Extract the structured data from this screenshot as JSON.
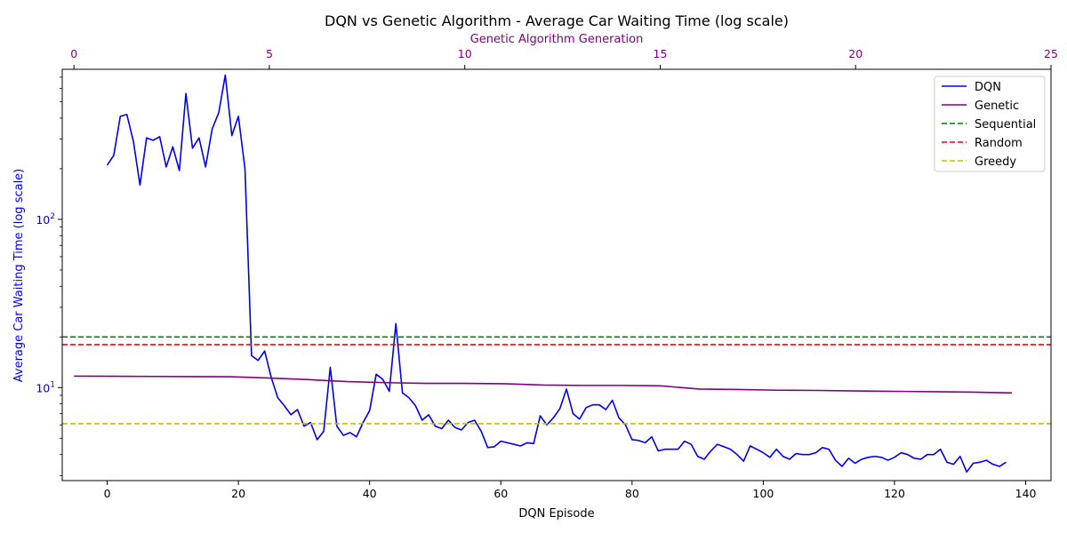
{
  "chart_data": {
    "type": "line",
    "title": "DQN vs Genetic Algorithm - Average Car Waiting Time (log scale)",
    "xlabel": "DQN Episode",
    "x2label": "Genetic Algorithm Generation",
    "ylabel": "Average Car Waiting Time (log scale)",
    "yscale": "log",
    "xlim": [
      -6.85,
      143.85
    ],
    "x2lim": [
      -0.3,
      25.0
    ],
    "ylim": [
      2.8,
      780
    ],
    "x_ticks": [
      0,
      20,
      40,
      60,
      80,
      100,
      120,
      140
    ],
    "x2_ticks": [
      0,
      5,
      10,
      15,
      20,
      25
    ],
    "y_ticks": [
      {
        "value": 10,
        "base": "10",
        "exp": "1"
      },
      {
        "value": 100,
        "base": "10",
        "exp": "2"
      }
    ],
    "legend_position": "top-right",
    "grid": false,
    "colors": {
      "dqn": "#0000ee",
      "genetic": "#800080",
      "sequential": "#008000",
      "random": "#ff0000",
      "greedy": "#bfbf00",
      "secondary_axis": "#800080",
      "primary_y_axis": "#0000ee"
    },
    "series": [
      {
        "name": "DQN",
        "axis": "primary",
        "x_start": 0,
        "values": [
          210,
          240,
          410,
          420,
          290,
          160,
          305,
          295,
          310,
          205,
          270,
          195,
          560,
          265,
          305,
          205,
          345,
          430,
          720,
          315,
          410,
          200,
          15.5,
          14.5,
          16.5,
          11.5,
          8.7,
          7.8,
          6.9,
          7.4,
          5.9,
          6.2,
          4.9,
          5.5,
          13.2,
          5.9,
          5.2,
          5.4,
          5.1,
          6.2,
          7.3,
          12.0,
          11.2,
          9.5,
          24.0,
          9.3,
          8.7,
          7.8,
          6.4,
          6.9,
          5.9,
          5.7,
          6.4,
          5.8,
          5.6,
          6.2,
          6.4,
          5.5,
          4.4,
          4.45,
          4.8,
          4.7,
          4.6,
          4.5,
          4.7,
          4.65,
          6.8,
          6.0,
          6.6,
          7.5,
          9.8,
          7.0,
          6.5,
          7.6,
          7.9,
          7.9,
          7.4,
          8.4,
          6.6,
          6.0,
          4.9,
          4.85,
          4.7,
          5.1,
          4.2,
          4.3,
          4.3,
          4.3,
          4.8,
          4.6,
          3.9,
          3.75,
          4.2,
          4.6,
          4.45,
          4.3,
          4.0,
          3.65,
          4.5,
          4.3,
          4.1,
          3.85,
          4.3,
          3.9,
          3.75,
          4.05,
          4.0,
          4.0,
          4.1,
          4.4,
          4.3,
          3.7,
          3.4,
          3.8,
          3.55,
          3.75,
          3.85,
          3.9,
          3.85,
          3.7,
          3.85,
          4.1,
          4.0,
          3.8,
          3.75,
          4.0,
          4.0,
          4.3,
          3.6,
          3.5,
          3.9,
          3.15,
          3.55,
          3.6,
          3.7,
          3.5,
          3.4,
          3.6
        ]
      },
      {
        "name": "Genetic",
        "axis": "secondary",
        "x": [
          0,
          1,
          2,
          3,
          4,
          5,
          6,
          7,
          8,
          9,
          10,
          11,
          12,
          13,
          14,
          15,
          16,
          17,
          18,
          19,
          20,
          21,
          22,
          23,
          24
        ],
        "values": [
          11.7,
          11.68,
          11.65,
          11.62,
          11.6,
          11.4,
          11.15,
          10.85,
          10.7,
          10.6,
          10.6,
          10.55,
          10.35,
          10.3,
          10.3,
          10.25,
          9.8,
          9.75,
          9.65,
          9.62,
          9.55,
          9.5,
          9.45,
          9.4,
          9.3
        ]
      },
      {
        "name": "Sequential",
        "axis": "primary",
        "constant": 20.0,
        "style": "dashed"
      },
      {
        "name": "Random",
        "axis": "primary",
        "constant": 18.0,
        "style": "dashed"
      },
      {
        "name": "Greedy",
        "axis": "primary",
        "constant": 6.1,
        "style": "dashed"
      }
    ]
  }
}
